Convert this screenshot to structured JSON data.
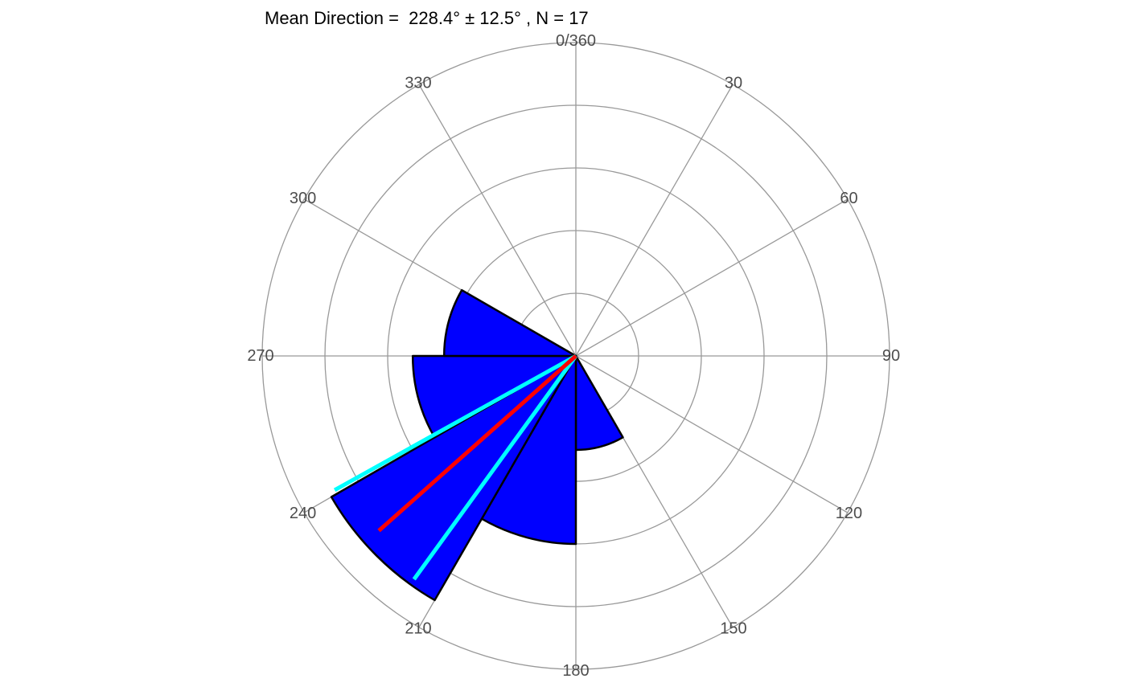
{
  "chart_data": {
    "type": "rose",
    "title": "Mean Direction =  228.4° ± 12.5° , N = 17",
    "angle_ticks": [
      {
        "angle": 0,
        "label": "0/360"
      },
      {
        "angle": 30,
        "label": "30"
      },
      {
        "angle": 60,
        "label": "60"
      },
      {
        "angle": 90,
        "label": "90"
      },
      {
        "angle": 120,
        "label": "120"
      },
      {
        "angle": 150,
        "label": "150"
      },
      {
        "angle": 180,
        "label": "180"
      },
      {
        "angle": 210,
        "label": "210"
      },
      {
        "angle": 240,
        "label": "240"
      },
      {
        "angle": 270,
        "label": "270"
      },
      {
        "angle": 300,
        "label": "300"
      },
      {
        "angle": 330,
        "label": "330"
      }
    ],
    "radial_max": 5,
    "radial_gridlines": [
      1,
      2,
      3,
      4,
      5
    ],
    "grid": true,
    "bins": [
      {
        "start": 150,
        "end": 180,
        "count": 1.5
      },
      {
        "start": 180,
        "end": 210,
        "count": 3
      },
      {
        "start": 210,
        "end": 240,
        "count": 4.5
      },
      {
        "start": 240,
        "end": 270,
        "count": 2.6
      },
      {
        "start": 270,
        "end": 300,
        "count": 2.1
      }
    ],
    "mean_direction": 228.4,
    "confidence_interval": [
      215.9,
      240.9
    ],
    "mean_line_length": 4.2,
    "ci_line_length": 4.4,
    "colors": {
      "bar_fill": "#0000ff",
      "bar_stroke": "#000000",
      "mean_line": "#ff0000",
      "ci_line": "#00ffff",
      "grid": "#999999",
      "tick_label": "#4d4d4d"
    }
  }
}
